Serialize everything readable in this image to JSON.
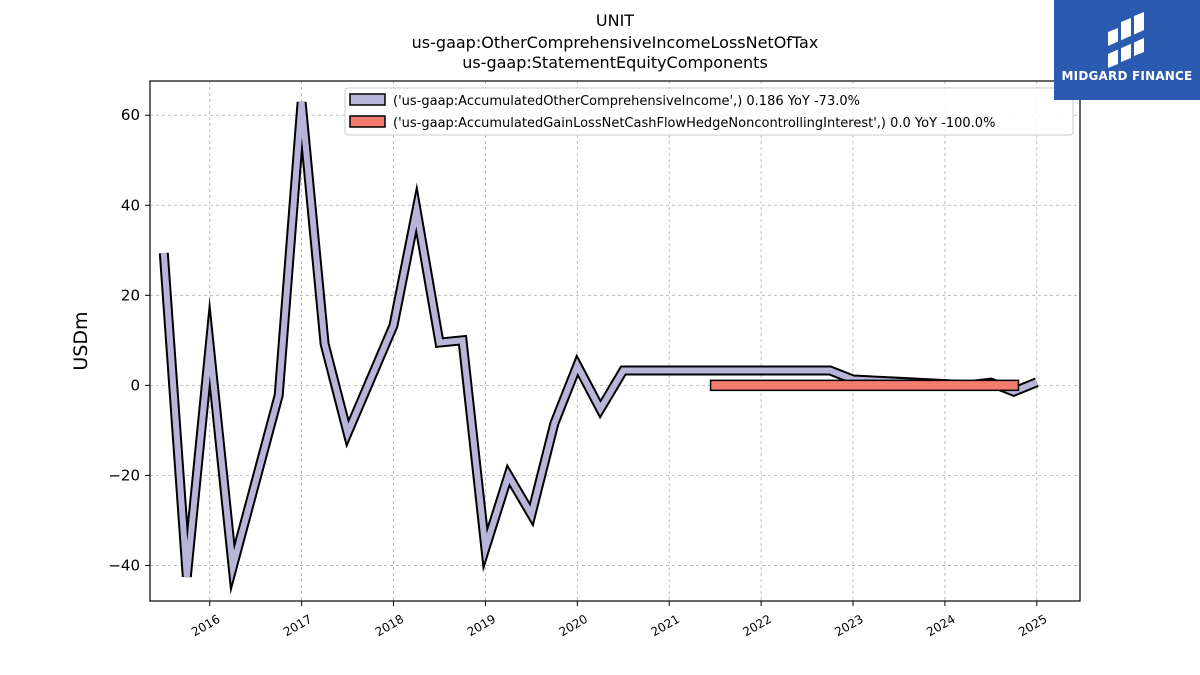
{
  "brand": {
    "name": "MIDGARD FINANCE",
    "icon": "midgard-logo-icon",
    "color": "#2a5bb0"
  },
  "chart_data": {
    "type": "line",
    "title_lines": [
      "UNIT",
      "us-gaap:OtherComprehensiveIncomeLossNetOfTax",
      "us-gaap:StatementEquityComponents"
    ],
    "xlabel": "",
    "ylabel": "USDm",
    "xlim": [
      2015.35,
      2025.47
    ],
    "ylim": [
      -47.9,
      67.6
    ],
    "x_ticks": [
      2016,
      2017,
      2018,
      2019,
      2020,
      2021,
      2022,
      2023,
      2024,
      2025
    ],
    "x_tick_labels": [
      "2016",
      "2017",
      "2018",
      "2019",
      "2020",
      "2021",
      "2022",
      "2023",
      "2024",
      "2025"
    ],
    "y_ticks": [
      -40,
      -20,
      0,
      20,
      40,
      60
    ],
    "y_tick_labels": [
      "−40",
      "−20",
      "0",
      "20",
      "40",
      "60"
    ],
    "grid": true,
    "legend_position": "top-right",
    "series": [
      {
        "name": "('us-gaap:AccumulatedOtherComprehensiveIncome',) 0.186 YoY -73.0%",
        "color": "#b8b6d8",
        "x": [
          2015.5,
          2015.75,
          2016.0,
          2016.25,
          2016.75,
          2017.0,
          2017.25,
          2017.5,
          2018.0,
          2018.25,
          2018.5,
          2018.75,
          2019.0,
          2019.25,
          2019.5,
          2019.75,
          2020.0,
          2020.25,
          2020.5,
          2022.75,
          2023.0,
          2024.25,
          2024.5,
          2024.75,
          2025.0
        ],
        "y": [
          29.4,
          -42.5,
          8.8,
          -40.4,
          -2.2,
          62.9,
          9.2,
          -10.6,
          13.3,
          39.0,
          9.5,
          10.0,
          -36.2,
          -20.0,
          -28.7,
          -8.5,
          4.4,
          -5.3,
          3.3,
          3.3,
          1.3,
          0.0,
          0.6,
          -1.4,
          0.7
        ]
      },
      {
        "name": "('us-gaap:AccumulatedGainLossNetCashFlowHedgeNoncontrollingInterest',) 0.0 YoY -100.0%",
        "color": "#f47b6e",
        "x": [
          2021.45,
          2024.8
        ],
        "y": [
          0.0,
          0.0
        ]
      }
    ]
  }
}
